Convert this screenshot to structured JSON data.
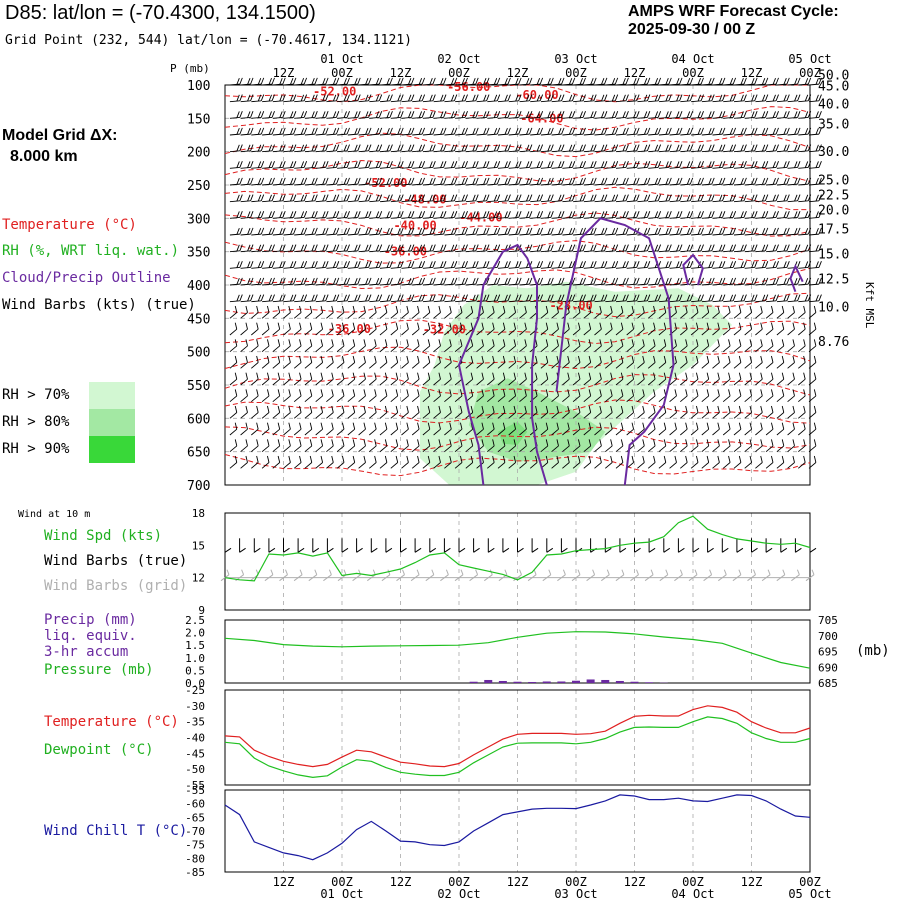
{
  "header": {
    "station_title": "D85:  lat/lon = (-70.4300, 134.1500)",
    "grid_point": "Grid Point (232, 544) lat/lon = (-70.4617, 134.1121)",
    "cycle_line1": "AMPS WRF Forecast Cycle:",
    "cycle_line2": "2025-09-30 / 00  Z"
  },
  "model_grid": {
    "label": "Model Grid ΔX:",
    "value": "8.000 km"
  },
  "time_axis": {
    "ticks": [
      "12Z",
      "00Z",
      "12Z",
      "00Z",
      "12Z",
      "00Z",
      "12Z",
      "00Z",
      "12Z",
      "00Z"
    ],
    "dates": [
      {
        "label": "01 Oct",
        "index": 1
      },
      {
        "label": "02 Oct",
        "index": 3
      },
      {
        "label": "03 Oct",
        "index": 5
      },
      {
        "label": "04 Oct",
        "index": 7
      },
      {
        "label": "05 Oct",
        "index": 9
      }
    ]
  },
  "colors": {
    "temperature": "#e02020",
    "rh": "#20c020",
    "cloud": "#6a2aa0",
    "wind": "#000000",
    "grid": "#aaaaaa",
    "rh70": "#d2f7d2",
    "rh80": "#a3e8a3",
    "rh90": "#39d839",
    "precip": "#6a2aa0",
    "windchill": "#1a1aa0"
  },
  "legend": {
    "temperature": "Temperature (°C)",
    "rh": "RH (%, WRT liq. wat.)",
    "cloud": "Cloud/Precip Outline",
    "wind": "Wind Barbs (kts) (true)",
    "rh70": "RH > 70%",
    "rh80": "RH > 80%",
    "rh90": "RH > 90%"
  },
  "chart_data": [
    {
      "type": "heatmap",
      "title": "Time-height cross section",
      "ylabel": "P (mb)",
      "ylabel_right": "Kft MSL",
      "pressure_ticks": [
        100,
        150,
        200,
        250,
        300,
        350,
        400,
        450,
        500,
        550,
        600,
        650,
        700
      ],
      "kft_ticks": [
        {
          "label": "50.0",
          "p": 84
        },
        {
          "label": "45.0",
          "p": 101
        },
        {
          "label": "40.0",
          "p": 128
        },
        {
          "label": "35.0",
          "p": 158
        },
        {
          "label": "30.0",
          "p": 199
        },
        {
          "label": "25.0",
          "p": 242
        },
        {
          "label": "22.5",
          "p": 264
        },
        {
          "label": "20.0",
          "p": 287
        },
        {
          "label": "17.5",
          "p": 315
        },
        {
          "label": "15.0",
          "p": 353
        },
        {
          "label": "12.5",
          "p": 390
        },
        {
          "label": "10.0",
          "p": 432
        },
        {
          "label": "8.76",
          "p": 484
        }
      ],
      "ylim": [
        100,
        700
      ],
      "temperature_labels": [
        {
          "text": "-52.00",
          "t": 22.5,
          "p": 110
        },
        {
          "text": "-56.00",
          "t": 50,
          "p": 103
        },
        {
          "text": "-60.00",
          "t": 64,
          "p": 115
        },
        {
          "text": "-64.00",
          "t": 65,
          "p": 150
        },
        {
          "text": "-52.00",
          "t": 33,
          "p": 247
        },
        {
          "text": "-48.00",
          "t": 41,
          "p": 272
        },
        {
          "text": "-44.00",
          "t": 52.5,
          "p": 299
        },
        {
          "text": "-40.00",
          "t": 39,
          "p": 311
        },
        {
          "text": "-36.00",
          "t": 37,
          "p": 350
        },
        {
          "text": "-28.00",
          "t": 71,
          "p": 431
        },
        {
          "text": "-36.00",
          "t": 25.5,
          "p": 466
        },
        {
          "text": "-32.00",
          "t": 45,
          "p": 467
        }
      ]
    },
    {
      "type": "line",
      "title": "Wind at 10 m",
      "ylabel": "Wind Spd (kts)",
      "legend": [
        "Wind Spd (kts)",
        "Wind Barbs (true)",
        "Wind Barbs (grid)"
      ],
      "ylim": [
        9,
        18
      ],
      "yticks": [
        9,
        12,
        15,
        18
      ],
      "x": [
        0,
        3,
        6,
        9,
        12,
        15,
        18,
        21,
        24,
        27,
        30,
        33,
        36,
        39,
        42,
        45,
        48,
        51,
        54,
        57,
        60,
        63,
        66,
        69,
        72,
        75,
        78,
        81,
        84,
        87,
        90,
        93,
        96,
        99,
        102,
        105,
        108,
        111,
        114,
        117,
        120
      ],
      "values": [
        12,
        11.8,
        11.7,
        14.2,
        14.1,
        14.3,
        14,
        14.3,
        12.2,
        12.4,
        12.2,
        12.5,
        12.8,
        13.4,
        14.1,
        14.3,
        13.2,
        12.9,
        12.6,
        12.3,
        11.8,
        12.5,
        14.1,
        14.2,
        14.5,
        14.6,
        14.7,
        15,
        15.2,
        15.3,
        15.8,
        17.1,
        17.7,
        16.5,
        16,
        15.6,
        15.4,
        15.2,
        15.1,
        15.2,
        14.8
      ]
    },
    {
      "type": "bar",
      "title": "Precip (mm) / Pressure (mb)",
      "legend": [
        "Precip (mm)",
        "liq. equiv.",
        "3-hr accum",
        "Pressure (mb)"
      ],
      "precip_ylim": [
        0,
        2.5
      ],
      "precip_yticks": [
        "0.0",
        "0.5",
        "1.0",
        "1.5",
        "2.0",
        "2.5"
      ],
      "pressure_ylim": [
        685,
        705
      ],
      "pressure_yticks": [
        "685",
        "690",
        "695",
        "700",
        "705"
      ],
      "right_unit": "(mb)",
      "x": [
        0,
        6,
        12,
        18,
        24,
        30,
        36,
        42,
        48,
        54,
        60,
        66,
        72,
        78,
        84,
        90,
        96,
        102,
        108,
        114,
        120
      ],
      "pressure": [
        699.2,
        698.5,
        697.2,
        696.7,
        696.5,
        696.7,
        696.8,
        696.9,
        697,
        697.8,
        699.5,
        700.8,
        701.3,
        701.2,
        700.6,
        699.6,
        698.8,
        697.6,
        694.5,
        691.5,
        689.7
      ],
      "precip_x": [
        51,
        54,
        57,
        60,
        63,
        66,
        69,
        72,
        75,
        78,
        81,
        84,
        87,
        90
      ],
      "precip_values": [
        0.05,
        0.12,
        0.08,
        0.05,
        0.04,
        0.06,
        0.06,
        0.09,
        0.14,
        0.12,
        0.08,
        0.05,
        0.03,
        0.01
      ]
    },
    {
      "type": "line",
      "title": "Temperature / Dewpoint",
      "legend": [
        "Temperature (°C)",
        "Dewpoint (°C)"
      ],
      "ylim": [
        -55,
        -25
      ],
      "yticks": [
        -55,
        -50,
        -45,
        -40,
        -35,
        -30,
        -25
      ],
      "x": [
        0,
        3,
        6,
        9,
        12,
        15,
        18,
        21,
        24,
        27,
        30,
        33,
        36,
        39,
        42,
        45,
        48,
        51,
        54,
        57,
        60,
        63,
        66,
        69,
        72,
        75,
        78,
        81,
        84,
        87,
        90,
        93,
        96,
        99,
        102,
        105,
        108,
        111,
        114,
        117,
        120
      ],
      "series": [
        {
          "name": "Temperature",
          "values": [
            -39.5,
            -39.8,
            -44,
            -46,
            -47.5,
            -48.5,
            -49.2,
            -48.5,
            -46.2,
            -44,
            -44.5,
            -46.2,
            -47.8,
            -48.3,
            -49,
            -49.2,
            -48.2,
            -45.5,
            -43,
            -40.5,
            -39,
            -38.7,
            -38.7,
            -38.7,
            -39,
            -38.8,
            -38,
            -35.5,
            -33.3,
            -33,
            -33.2,
            -33.2,
            -31.2,
            -30,
            -30.5,
            -32,
            -35,
            -37,
            -38.5,
            -38.5,
            -37
          ]
        },
        {
          "name": "Dewpoint",
          "values": [
            -41.5,
            -42,
            -46.5,
            -49,
            -50.5,
            -51.8,
            -52.6,
            -52.1,
            -49.3,
            -47,
            -47.5,
            -49.5,
            -51,
            -51.6,
            -52,
            -52,
            -51,
            -48,
            -45.5,
            -43,
            -41.8,
            -41.7,
            -41.7,
            -41.7,
            -42,
            -41.5,
            -40.3,
            -38.3,
            -36.8,
            -36.7,
            -36.8,
            -36.8,
            -35,
            -33.5,
            -34,
            -35.5,
            -38.5,
            -40.3,
            -41.5,
            -41.5,
            -40.3
          ]
        }
      ]
    },
    {
      "type": "line",
      "title": "Wind Chill",
      "legend": [
        "Wind Chill T (°C)"
      ],
      "ylim": [
        -85,
        -55
      ],
      "yticks": [
        -85,
        -80,
        -75,
        -70,
        -65,
        -60,
        -55
      ],
      "x": [
        0,
        3,
        6,
        9,
        12,
        15,
        18,
        21,
        24,
        27,
        30,
        33,
        36,
        39,
        42,
        45,
        48,
        51,
        54,
        57,
        60,
        63,
        66,
        69,
        72,
        75,
        78,
        81,
        84,
        87,
        90,
        93,
        96,
        99,
        102,
        105,
        108,
        111,
        114,
        117,
        120
      ],
      "values": [
        -60.5,
        -64,
        -74,
        -76,
        -78,
        -79,
        -80.5,
        -78,
        -74.5,
        -69.5,
        -66.5,
        -70,
        -73.7,
        -74,
        -75,
        -75.3,
        -74,
        -70,
        -67,
        -64,
        -63,
        -62,
        -61.7,
        -61.7,
        -61.8,
        -60.5,
        -59,
        -56.8,
        -57.2,
        -58.5,
        -58.5,
        -58,
        -59,
        -59.2,
        -58,
        -56.8,
        -57,
        -59,
        -62,
        -64.5,
        -65
      ]
    }
  ],
  "panels": {
    "wind_title": "Wind at 10 m",
    "wind_spd_label": "Wind Spd (kts)",
    "wind_barbs_true": "Wind Barbs (true)",
    "wind_barbs_grid": "Wind Barbs (grid)",
    "precip_label_1": "Precip (mm)",
    "precip_label_2": "liq. equiv.",
    "precip_label_3": "3-hr accum",
    "pressure_label": "Pressure (mb)",
    "pressure_unit": "(mb)",
    "temp_label": "Temperature (°C)",
    "dew_label": "Dewpoint (°C)",
    "chill_label": "Wind Chill T (°C)",
    "p_axis_label": "P (mb)",
    "kft_label": "Kft MSL"
  }
}
